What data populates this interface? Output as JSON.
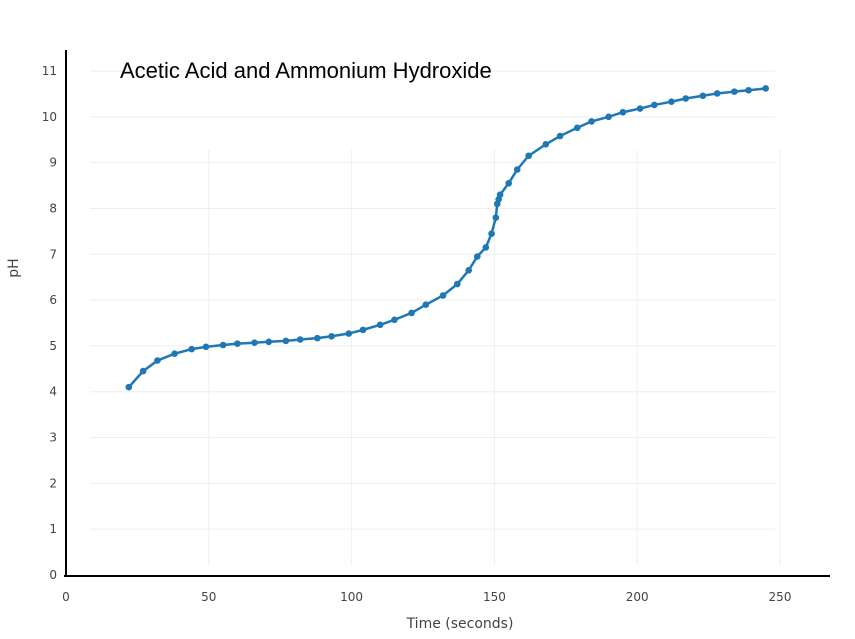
{
  "chart_data": {
    "type": "line",
    "title": "Acetic Acid and Ammonium Hydroxide",
    "xlabel": "Time (seconds)",
    "ylabel": "pH",
    "xlim": [
      0,
      250
    ],
    "ylim": [
      0,
      11
    ],
    "x_ticks": [
      0,
      50,
      100,
      150,
      200,
      250
    ],
    "y_ticks": [
      0,
      1,
      2,
      3,
      4,
      5,
      6,
      7,
      8,
      9,
      10,
      11
    ],
    "grid": true,
    "legend": "none",
    "series_color": "#1f77b4",
    "series": [
      {
        "x": [
          22,
          27,
          32,
          38,
          44,
          49,
          55,
          60,
          66,
          71,
          77,
          82,
          88,
          93,
          99,
          104,
          110,
          115,
          121,
          126,
          132,
          137,
          141,
          144,
          147,
          149,
          150.5,
          151,
          151.5,
          152,
          155,
          158,
          162,
          168,
          173,
          179,
          184,
          190,
          195,
          201,
          206,
          212,
          217,
          223,
          228,
          234,
          239,
          245
        ],
        "y": [
          4.1,
          4.45,
          4.68,
          4.83,
          4.93,
          4.98,
          5.02,
          5.05,
          5.07,
          5.09,
          5.11,
          5.14,
          5.17,
          5.21,
          5.27,
          5.35,
          5.46,
          5.57,
          5.72,
          5.9,
          6.1,
          6.35,
          6.65,
          6.95,
          7.15,
          7.45,
          7.8,
          8.1,
          8.2,
          8.3,
          8.55,
          8.85,
          9.15,
          9.4,
          9.58,
          9.76,
          9.9,
          10.0,
          10.1,
          10.18,
          10.26,
          10.33,
          10.4,
          10.46,
          10.51,
          10.55,
          10.58,
          10.62
        ]
      }
    ]
  }
}
